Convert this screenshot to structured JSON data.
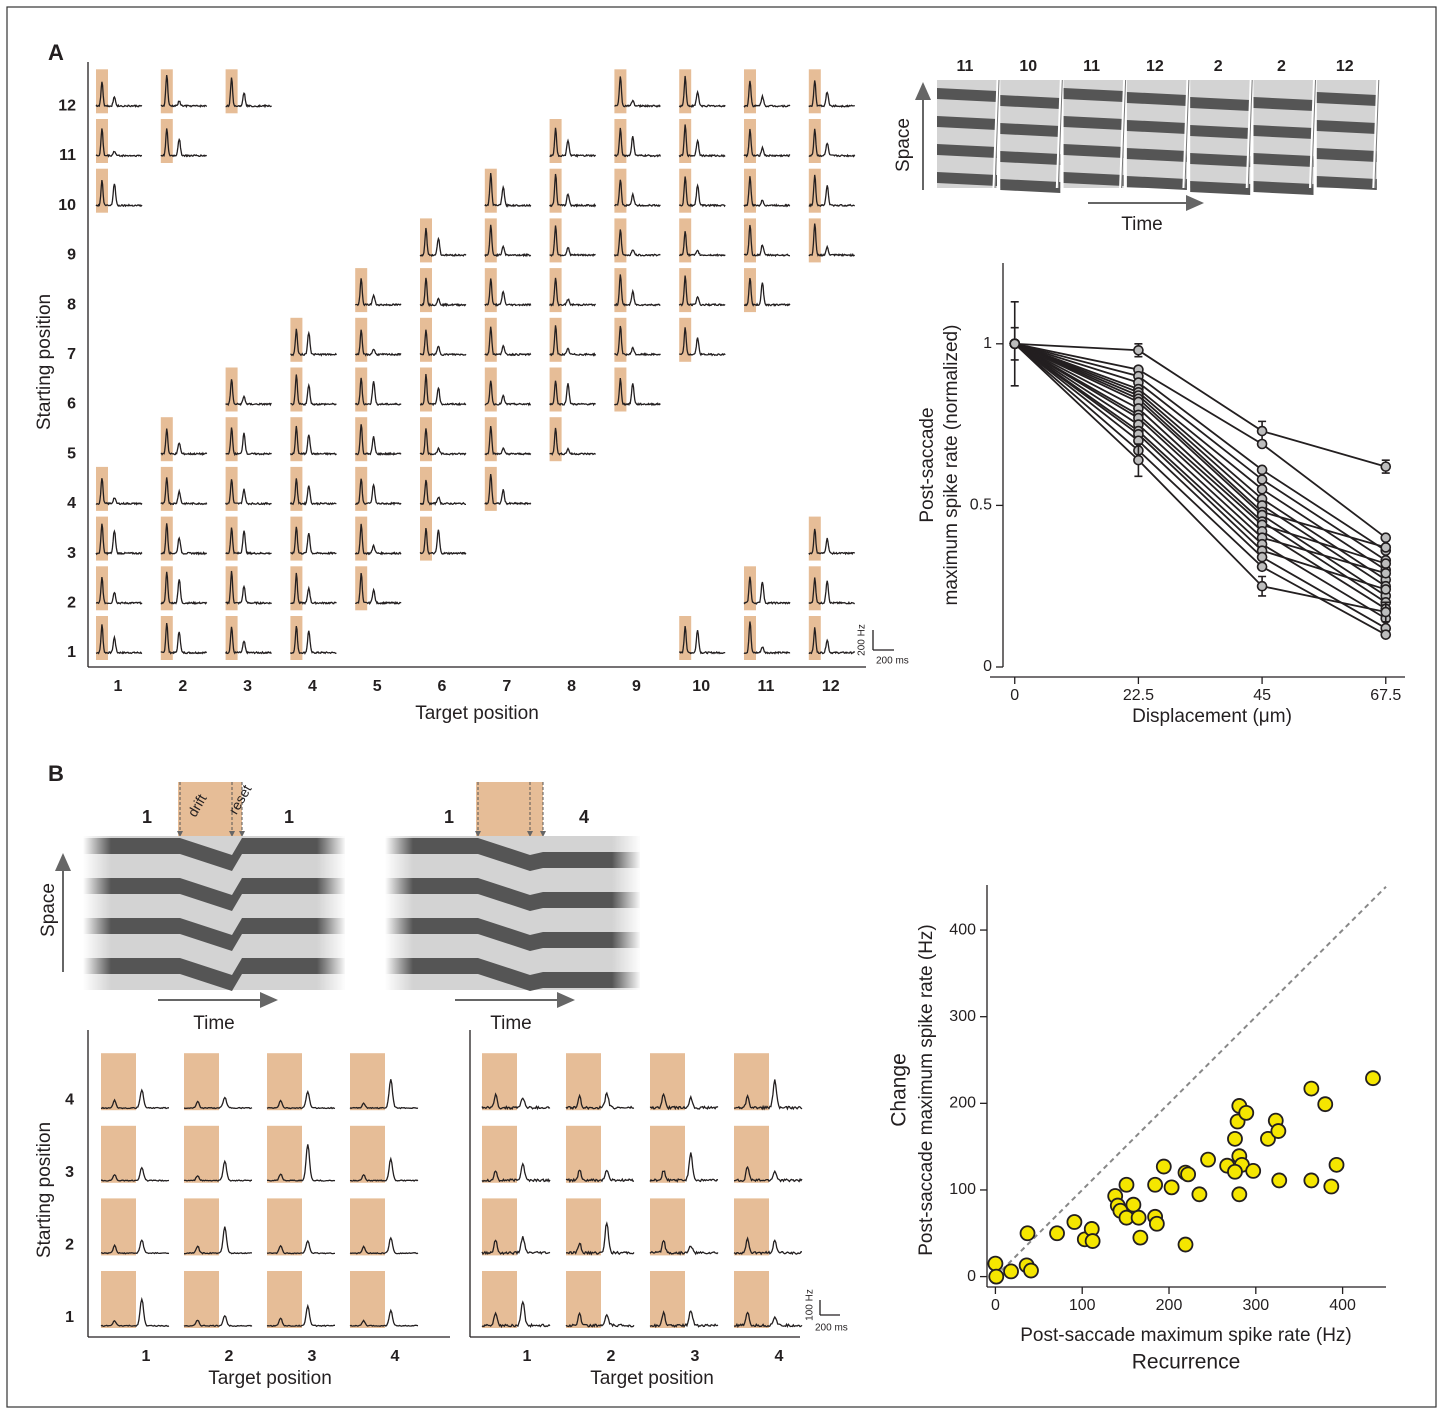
{
  "panel_labels": [
    "A",
    "B"
  ],
  "grid_a": {
    "x_label": "Target position",
    "y_label": "Starting position",
    "targets": [
      1,
      2,
      3,
      4,
      5,
      6,
      7,
      8,
      9,
      10,
      11,
      12
    ],
    "starts": [
      1,
      2,
      3,
      4,
      5,
      6,
      7,
      8,
      9,
      10,
      11,
      12
    ],
    "cells": [
      [
        1,
        2,
        3,
        4,
        10,
        11,
        12
      ],
      [
        1,
        2,
        3,
        4,
        5,
        11,
        12
      ],
      [
        1,
        2,
        3,
        4,
        5,
        6,
        12
      ],
      [
        1,
        2,
        3,
        4,
        5,
        6,
        7
      ],
      [
        2,
        3,
        4,
        5,
        6,
        7,
        8
      ],
      [
        3,
        4,
        5,
        6,
        7,
        8,
        9
      ],
      [
        4,
        5,
        6,
        7,
        8,
        9,
        10
      ],
      [
        5,
        6,
        7,
        8,
        9,
        10,
        11
      ],
      [
        6,
        7,
        8,
        9,
        10,
        11,
        12
      ],
      [
        1,
        7,
        8,
        9,
        10,
        11,
        12
      ],
      [
        1,
        2,
        8,
        9,
        10,
        11,
        12
      ],
      [
        1,
        2,
        3,
        9,
        10,
        11,
        12
      ]
    ],
    "scale_y": "200 Hz",
    "scale_x": "200 ms"
  },
  "schematic_a": {
    "labels": [
      "11",
      "10",
      "11",
      "12",
      "2",
      "2",
      "12"
    ],
    "y_label": "Space",
    "x_label": "Time"
  },
  "schematic_b": {
    "panels": [
      {
        "labels": [
          "1",
          "1"
        ],
        "drift": "drift",
        "reset": "reset"
      },
      {
        "labels": [
          "1",
          "4"
        ]
      }
    ],
    "y_label": "Space",
    "x_label": "Time"
  },
  "grids_b": {
    "x_label": "Target position",
    "y_label": "Starting position",
    "targets": [
      1,
      2,
      3,
      4
    ],
    "starts": [
      1,
      2,
      3,
      4
    ],
    "scale_y": "100 Hz",
    "scale_x": "200 ms"
  },
  "chart_data": [
    {
      "type": "line",
      "x_label": "Displacement (μm)",
      "y_label": [
        "Post-saccade",
        "maximum spike rate (normalized)"
      ],
      "x": [
        0,
        22.5,
        45,
        67.5
      ],
      "xlim": [
        -4.5,
        71
      ],
      "ylim": [
        0,
        1.25
      ],
      "xticks": [
        0,
        22.5,
        45,
        67.5
      ],
      "yticks": [
        0,
        0.5,
        1
      ],
      "color": "#231f20",
      "marker_color": "#bdbdbd",
      "series": [
        {
          "values": [
            1,
            0.98,
            0.73,
            0.62
          ],
          "errors": [
            0.13,
            0.02,
            0.03,
            0.02
          ]
        },
        {
          "values": [
            1,
            0.92,
            0.69,
            0.4
          ]
        },
        {
          "values": [
            1,
            0.9,
            0.61,
            0.36
          ]
        },
        {
          "values": [
            1,
            0.88,
            0.58,
            0.33
          ]
        },
        {
          "values": [
            1,
            0.86,
            0.55,
            0.3
          ]
        },
        {
          "values": [
            1,
            0.85,
            0.52,
            0.27
          ]
        },
        {
          "values": [
            1,
            0.84,
            0.5,
            0.25
          ]
        },
        {
          "values": [
            1,
            0.83,
            0.48,
            0.37
          ]
        },
        {
          "values": [
            1,
            0.82,
            0.47,
            0.22
          ]
        },
        {
          "values": [
            1,
            0.8,
            0.45,
            0.2
          ]
        },
        {
          "values": [
            1,
            0.78,
            0.44,
            0.32
          ]
        },
        {
          "values": [
            1,
            0.77,
            0.42,
            0.18
          ]
        },
        {
          "values": [
            1,
            0.75,
            0.4,
            0.29
          ]
        },
        {
          "values": [
            1,
            0.73,
            0.38,
            0.15
          ]
        },
        {
          "values": [
            1,
            0.72,
            0.36,
            0.24
          ]
        },
        {
          "values": [
            1,
            0.7,
            0.34,
            0.12
          ]
        },
        {
          "values": [
            1,
            0.67,
            0.31,
            0.1
          ]
        },
        {
          "values": [
            1,
            0.64,
            0.25,
            0.17
          ],
          "errors": [
            0.05,
            0.05,
            0.03,
            0.03
          ]
        }
      ]
    },
    {
      "type": "scatter",
      "x_label": [
        "Post-saccade maximum spike rate (Hz)",
        "Recurrence"
      ],
      "y_label": [
        "Change",
        "Post-saccade maximum spike rate (Hz)"
      ],
      "xlim": [
        -12,
        450
      ],
      "ylim": [
        -12,
        452
      ],
      "xticks": [
        0,
        100,
        200,
        300,
        400
      ],
      "yticks": [
        0,
        100,
        200,
        300,
        400
      ],
      "identity_line": true,
      "color": "#f5e600",
      "x": [
        0,
        1,
        18,
        37,
        36,
        41,
        71,
        91,
        103,
        111,
        112,
        138,
        141,
        144,
        151,
        151,
        159,
        165,
        167,
        184,
        186,
        184,
        194,
        203,
        219,
        222,
        219,
        235,
        245,
        267,
        276,
        281,
        279,
        289,
        281,
        284,
        276,
        281,
        297,
        314,
        323,
        326,
        327,
        364,
        364,
        380,
        387,
        393,
        435
      ],
      "values": [
        15,
        0,
        6,
        50,
        13,
        7,
        50,
        63,
        43,
        55,
        41,
        93,
        82,
        76,
        106,
        68,
        83,
        68,
        45,
        69,
        61,
        106,
        127,
        103,
        120,
        118,
        37,
        95,
        135,
        128,
        159,
        197,
        179,
        189,
        139,
        129,
        121,
        95,
        122,
        159,
        180,
        168,
        111,
        217,
        111,
        199,
        104,
        129,
        229
      ]
    }
  ]
}
